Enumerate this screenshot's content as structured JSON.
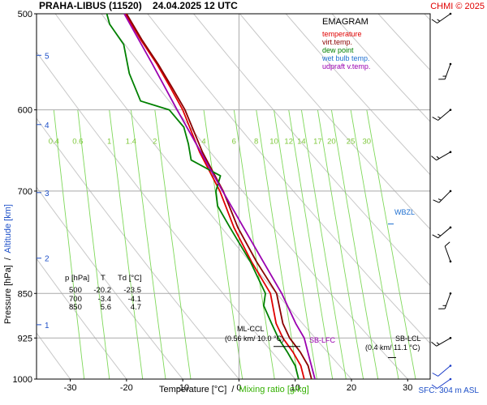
{
  "header": {
    "title": "PRAHA-LIBUS (11520)    24.04.2025 12 UTC",
    "credit": "CHMI © 2025"
  },
  "legend": {
    "heading": "EMAGRAM",
    "items": [
      {
        "label": "temperature",
        "color": "#e00000"
      },
      {
        "label": "virt.temp.",
        "color": "#8a0000"
      },
      {
        "label": "dew point",
        "color": "#008000"
      },
      {
        "label": "wet bulb temp.",
        "color": "#1e6fd0"
      },
      {
        "label": "udpraft v.temp.",
        "color": "#9a00b0"
      }
    ]
  },
  "axes": {
    "y_label_left": "Pressure [hPa]  /  ",
    "y_label_right": "Altitude [km]",
    "x_label_left": "Temperature [°C]  /  ",
    "x_label_right": "Mixing ratio [g/kg]",
    "footer": "SFC: 304 m ASL"
  },
  "table": {
    "header": [
      "p [hPa]",
      "T",
      "Td [°C]"
    ],
    "rows": [
      [
        "500",
        "-20.2",
        "-23.5"
      ],
      [
        "700",
        "-3.4",
        "-4.1"
      ],
      [
        "850",
        "5.6",
        "4.7"
      ]
    ]
  },
  "annotations": {
    "wbzl": "WBZL",
    "ml_ccl_1": "ML-CCL",
    "ml_ccl_2": "(0.56 km/ 10.0 °C)",
    "sb_lfc": "SB-LFC",
    "sb_lcl_1": "SB-LCL",
    "sb_lcl_2": "(0.4 km/ 11.1 °C)"
  },
  "chart_data": {
    "type": "line",
    "title": "PRAHA-LIBUS (11520)    24.04.2025 12 UTC",
    "xlabel": "Temperature [°C]",
    "ylabel": "Pressure [hPa]",
    "y_scale": "log",
    "xlim": [
      -36,
      34
    ],
    "ylim": [
      1000,
      500
    ],
    "x_ticks": [
      -30,
      -20,
      -10,
      0,
      10,
      20,
      30
    ],
    "p_ticks": [
      500,
      600,
      700,
      850,
      925,
      1000
    ],
    "altitude_ticks_km": [
      {
        "km": 1,
        "p": 902
      },
      {
        "km": 2,
        "p": 795
      },
      {
        "km": 3,
        "p": 702
      },
      {
        "km": 4,
        "p": 617
      },
      {
        "km": 5,
        "p": 541
      }
    ],
    "mixing_ratio_labels": [
      "0.4",
      "0.6",
      "1",
      "1.4",
      "2",
      "4",
      "6",
      "8",
      "10",
      "12",
      "14",
      "17",
      "20",
      "25",
      "30"
    ],
    "series": [
      {
        "name": "temperature",
        "color": "#e00000",
        "points": [
          [
            1000,
            11.6
          ],
          [
            975,
            11.0
          ],
          [
            950,
            9.6
          ],
          [
            925,
            7.8
          ],
          [
            900,
            6.6
          ],
          [
            850,
            5.6
          ],
          [
            800,
            2.2
          ],
          [
            750,
            -0.9
          ],
          [
            700,
            -3.4
          ],
          [
            650,
            -7.0
          ],
          [
            600,
            -10.0
          ],
          [
            575,
            -12.2
          ],
          [
            550,
            -14.6
          ],
          [
            525,
            -17.5
          ],
          [
            500,
            -20.2
          ]
        ]
      },
      {
        "name": "virt.temp.",
        "color": "#8a0000",
        "points": [
          [
            1000,
            12.9
          ],
          [
            975,
            12.3
          ],
          [
            950,
            10.9
          ],
          [
            925,
            9.0
          ],
          [
            900,
            7.8
          ],
          [
            850,
            6.7
          ],
          [
            800,
            3.1
          ],
          [
            750,
            -0.2
          ],
          [
            700,
            -2.8
          ],
          [
            650,
            -6.5
          ],
          [
            600,
            -9.6
          ],
          [
            575,
            -11.9
          ],
          [
            550,
            -14.4
          ],
          [
            525,
            -17.3
          ],
          [
            500,
            -20.0
          ]
        ]
      },
      {
        "name": "dew point",
        "color": "#008000",
        "points": [
          [
            1000,
            10.6
          ],
          [
            975,
            10.0
          ],
          [
            950,
            8.6
          ],
          [
            925,
            7.0
          ],
          [
            900,
            5.8
          ],
          [
            870,
            4.4
          ],
          [
            850,
            4.7
          ],
          [
            800,
            2.0
          ],
          [
            750,
            -1.6
          ],
          [
            720,
            -3.8
          ],
          [
            700,
            -4.1
          ],
          [
            680,
            -3.3
          ],
          [
            660,
            -8.5
          ],
          [
            640,
            -9.0
          ],
          [
            620,
            -9.8
          ],
          [
            600,
            -12.4
          ],
          [
            590,
            -17.5
          ],
          [
            560,
            -19.5
          ],
          [
            530,
            -20.5
          ],
          [
            510,
            -23.0
          ],
          [
            500,
            -23.5
          ]
        ]
      },
      {
        "name": "udpraft v.temp.",
        "color": "#9a00b0",
        "points": [
          [
            1000,
            13.5
          ],
          [
            960,
            12.5
          ],
          [
            925,
            11.6
          ],
          [
            900,
            10.1
          ],
          [
            850,
            7.6
          ],
          [
            800,
            4.3
          ],
          [
            750,
            0.8
          ],
          [
            700,
            -2.9
          ],
          [
            650,
            -6.8
          ],
          [
            600,
            -11.0
          ],
          [
            550,
            -15.4
          ],
          [
            500,
            -20.4
          ]
        ]
      }
    ],
    "wind_barbs": [
      {
        "p": 1000,
        "dir": 235,
        "speed_kt": 10
      },
      {
        "p": 975,
        "dir": 230,
        "speed_kt": 10
      },
      {
        "p": 925,
        "dir": 240,
        "speed_kt": 15
      },
      {
        "p": 850,
        "dir": 200,
        "speed_kt": 15
      },
      {
        "p": 800,
        "dir": 340,
        "speed_kt": 10
      },
      {
        "p": 750,
        "dir": 230,
        "speed_kt": 15
      },
      {
        "p": 700,
        "dir": 225,
        "speed_kt": 15
      },
      {
        "p": 650,
        "dir": 240,
        "speed_kt": 15
      },
      {
        "p": 600,
        "dir": 230,
        "speed_kt": 15
      },
      {
        "p": 550,
        "dir": 200,
        "speed_kt": 15
      },
      {
        "p": 500,
        "dir": 235,
        "speed_kt": 15
      }
    ],
    "levels": {
      "ml_ccl_p": 940,
      "sb_lcl_p": 960,
      "wbzl_p": 745
    }
  }
}
